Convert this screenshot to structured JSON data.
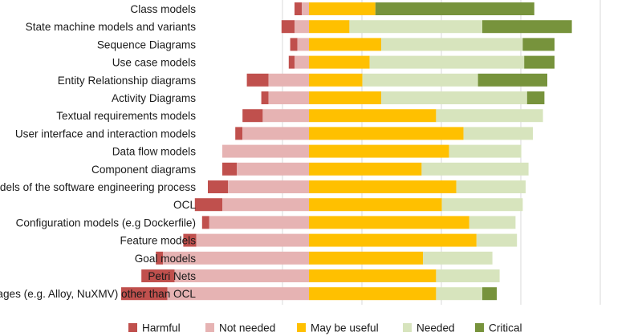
{
  "chart_data": {
    "type": "bar",
    "subtype": "diverging-stacked-horizontal",
    "categories": [
      "Class models",
      "State machine models and variants",
      "Sequence Diagrams",
      "Use case models",
      "Entity Relationship diagrams",
      "Activity Diagrams",
      "Textual requirements models",
      "User interface and interaction models",
      "Data flow models",
      "Component diagrams",
      "Models of the software engineering process",
      "OCL",
      "Configuration models (e.g Dockerfile)",
      "Feature models",
      "Goal models",
      "Petri Nets",
      "Formal languages (e.g. Alloy, NuXMV) other than OCL"
    ],
    "series": [
      {
        "name": "Harmful",
        "color": "#c0504d",
        "values": [
          2.5,
          4.5,
          2.5,
          2.0,
          7.5,
          2.5,
          7.0,
          2.5,
          0.0,
          5.0,
          7.0,
          9.5,
          2.5,
          4.5,
          2.5,
          11.5,
          16.0
        ]
      },
      {
        "name": "Not needed",
        "color": "#e6b3b3",
        "values": [
          2.5,
          5.0,
          4.0,
          5.0,
          14.0,
          14.0,
          16.0,
          23.0,
          30.0,
          25.0,
          28.0,
          30.0,
          34.5,
          39.0,
          50.5,
          46.5,
          49.0
        ]
      },
      {
        "name": "May be useful",
        "color": "#ffc000",
        "values": [
          23.0,
          14.0,
          25.0,
          21.0,
          18.5,
          25.0,
          44.0,
          53.5,
          48.5,
          39.0,
          51.0,
          46.0,
          55.5,
          58.0,
          39.5,
          44.0,
          44.0
        ]
      },
      {
        "name": "Needed",
        "color": "#d7e4bd",
        "values": [
          0.0,
          46.0,
          49.0,
          53.5,
          40.0,
          50.5,
          37.0,
          24.0,
          25.0,
          37.0,
          24.0,
          28.0,
          16.0,
          14.0,
          24.0,
          22.0,
          16.0
        ]
      },
      {
        "name": "Critical",
        "color": "#77933c",
        "values": [
          55.0,
          31.0,
          11.0,
          10.5,
          24.0,
          6.0,
          0.0,
          0.0,
          0.0,
          0.0,
          0.0,
          0.0,
          0.0,
          0.0,
          0.0,
          0.0,
          5.0
        ]
      }
    ],
    "x_unit": "percent of respondents",
    "xlim": [
      -40,
      100
    ],
    "baseline": "boundary between Not needed and May be useful",
    "grid": true,
    "legend_position": "bottom",
    "title": "",
    "xlabel": "",
    "ylabel": ""
  }
}
